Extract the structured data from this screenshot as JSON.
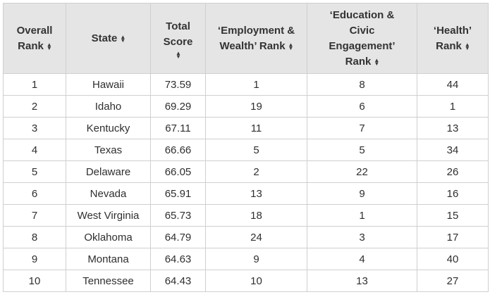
{
  "table": {
    "headers": [
      {
        "lines": [
          "Overall",
          "Rank"
        ],
        "sort_icon": "sort-updown-icon"
      },
      {
        "lines": [
          "State"
        ],
        "sort_icon": "sort-updown-icon"
      },
      {
        "lines": [
          "Total",
          "Score"
        ],
        "sort_icon": "sort-updown-icon",
        "icon_own_line": true
      },
      {
        "lines": [
          "‘Employment &",
          "Wealth’ Rank"
        ],
        "sort_icon": "sort-updown-icon"
      },
      {
        "lines": [
          "‘Education &",
          "Civic",
          "Engagement’",
          "Rank"
        ],
        "sort_icon": "sort-updown-icon"
      },
      {
        "lines": [
          "‘Health’",
          "Rank"
        ],
        "sort_icon": "sort-updown-icon"
      }
    ],
    "rows": [
      [
        "1",
        "Hawaii",
        "73.59",
        "1",
        "8",
        "44"
      ],
      [
        "2",
        "Idaho",
        "69.29",
        "19",
        "6",
        "1"
      ],
      [
        "3",
        "Kentucky",
        "67.11",
        "11",
        "7",
        "13"
      ],
      [
        "4",
        "Texas",
        "66.66",
        "5",
        "5",
        "34"
      ],
      [
        "5",
        "Delaware",
        "66.05",
        "2",
        "22",
        "26"
      ],
      [
        "6",
        "Nevada",
        "65.91",
        "13",
        "9",
        "16"
      ],
      [
        "7",
        "West Virginia",
        "65.73",
        "18",
        "1",
        "15"
      ],
      [
        "8",
        "Oklahoma",
        "64.79",
        "24",
        "3",
        "17"
      ],
      [
        "9",
        "Montana",
        "64.63",
        "9",
        "4",
        "40"
      ],
      [
        "10",
        "Tennessee",
        "64.43",
        "10",
        "13",
        "27"
      ]
    ]
  }
}
